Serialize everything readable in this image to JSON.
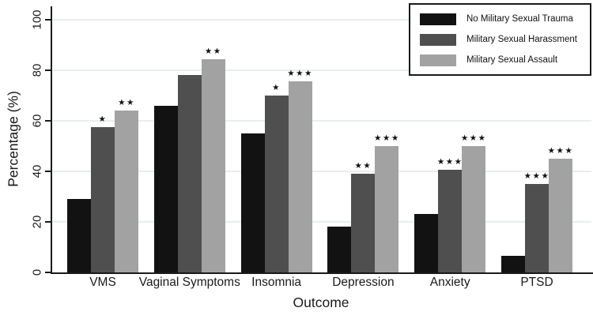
{
  "chart_data": {
    "type": "bar",
    "title": "",
    "xlabel": "Outcome",
    "ylabel": "Percentage (%)",
    "ylim": [
      0,
      100
    ],
    "yticks": [
      0,
      20,
      40,
      60,
      80,
      100
    ],
    "grid": true,
    "gridline_color": "#e6efee",
    "legend_position": "top-right",
    "star_glyph": "★",
    "categories": [
      "VMS",
      "Vaginal Symptoms",
      "Insomnia",
      "Depression",
      "Anxiety",
      "PTSD"
    ],
    "series": [
      {
        "name": "No Military Sexual Trauma",
        "color": "#121212",
        "values": [
          29,
          66,
          55,
          18,
          23,
          6.5
        ],
        "significance": [
          "",
          "",
          "",
          "",
          "",
          ""
        ]
      },
      {
        "name": "Military Sexual Harassment",
        "color": "#4f4f4f",
        "values": [
          57.5,
          78,
          70,
          39,
          40.5,
          35
        ],
        "significance": [
          "*",
          "",
          "*",
          "**",
          "***",
          "***"
        ]
      },
      {
        "name": "Military Sexual Assault",
        "color": "#a2a2a2",
        "values": [
          64,
          84.5,
          75.5,
          50,
          50,
          45
        ],
        "significance": [
          "**",
          "**",
          "***",
          "***",
          "***",
          "***"
        ]
      }
    ]
  }
}
